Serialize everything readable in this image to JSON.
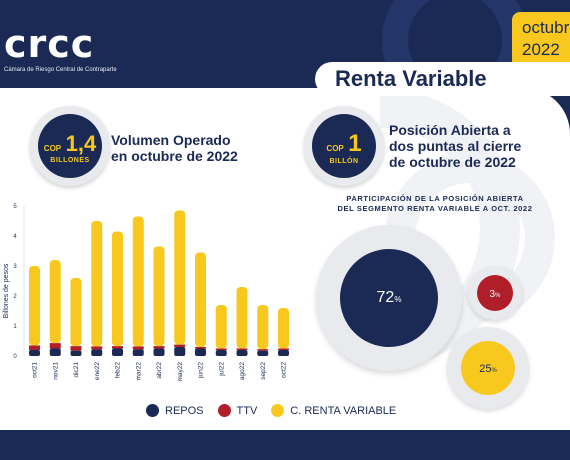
{
  "brand": {
    "logo": "crcc",
    "subtitle": "Cámara de Riesgo Central de Contraparte"
  },
  "period_tab": {
    "month": "octubre",
    "year": "2022"
  },
  "section_title": "Renta Variable",
  "volume": {
    "badge_currency": "COP",
    "badge_value": "1,4",
    "badge_unit": "BILLONES",
    "title_line1": "Volumen Operado",
    "title_line2": "en octubre de 2022"
  },
  "open_position": {
    "badge_currency": "COP",
    "badge_value": "1",
    "badge_unit": "BILLÓN",
    "title_line1": "Posición Abierta a",
    "title_line2": "dos puntas al cierre",
    "title_line3": "de octubre de 2022"
  },
  "pie": {
    "title_line1": "PARTICIPACIÓN DE LA POSICIÓN ABIERTA",
    "title_line2": "DEL SEGMENTO RENTA VARIABLE A OCT. 2022",
    "repos_value": "72",
    "ttv_value": "3",
    "renta_value": "25",
    "percent_sign": "%"
  },
  "legend": {
    "repos": "REPOS",
    "ttv": "TTV",
    "renta": "C. RENTA VARIABLE"
  },
  "colors": {
    "navy": "#1b2a55",
    "red": "#b01e2a",
    "yellow": "#f8c81e",
    "white": "#ffffff"
  },
  "chart_data": {
    "type": "bar",
    "stacked": true,
    "categories": [
      "oct21",
      "nov21",
      "dic21",
      "ene22",
      "feb22",
      "mar22",
      "abr22",
      "may22",
      "jun22",
      "jul22",
      "ago22",
      "sep22",
      "oct22"
    ],
    "series": [
      {
        "name": "REPOS",
        "values": [
          0.2,
          0.25,
          0.18,
          0.22,
          0.25,
          0.22,
          0.25,
          0.3,
          0.25,
          0.2,
          0.2,
          0.18,
          0.2
        ]
      },
      {
        "name": "TTV",
        "values": [
          0.15,
          0.18,
          0.15,
          0.1,
          0.08,
          0.1,
          0.08,
          0.08,
          0.05,
          0.05,
          0.05,
          0.05,
          0.05
        ]
      },
      {
        "name": "C. RENTA VARIABLE",
        "values": [
          2.65,
          2.77,
          2.27,
          4.18,
          3.82,
          4.33,
          3.32,
          4.47,
          3.15,
          1.45,
          2.05,
          1.47,
          1.35
        ]
      }
    ],
    "ylabel": "Billones de pesos",
    "yticks": [
      0,
      1,
      2,
      3,
      4,
      5
    ],
    "ylim": [
      0,
      5
    ],
    "grid": false,
    "legend_position": "bottom"
  },
  "share_chart": {
    "type": "pie",
    "categories": [
      "REPOS",
      "TTV",
      "C. RENTA VARIABLE"
    ],
    "values": [
      72,
      3,
      25
    ]
  }
}
